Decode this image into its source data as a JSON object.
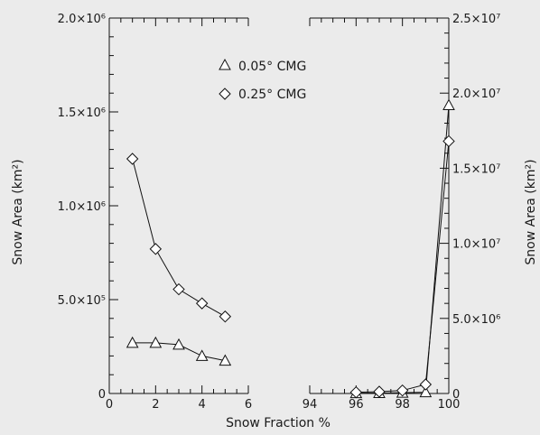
{
  "chart_data": {
    "type": "line",
    "xlabel": "Snow Fraction %",
    "left_panel": {
      "xlim": [
        0,
        6
      ],
      "ylim": [
        0,
        2000000
      ],
      "ylabel": "Snow Area (km²)",
      "x_ticks": [
        {
          "value": 0,
          "label": "0"
        },
        {
          "value": 2,
          "label": "2"
        },
        {
          "value": 4,
          "label": "4"
        },
        {
          "value": 6,
          "label": "6"
        }
      ],
      "y_ticks": [
        {
          "value": 0,
          "label": "0"
        },
        {
          "value": 500000,
          "label": "5.0×10⁵"
        },
        {
          "value": 1000000,
          "label": "1.0×10⁶"
        },
        {
          "value": 1500000,
          "label": "1.5×10⁶"
        },
        {
          "value": 2000000,
          "label": "2.0×10⁶"
        }
      ],
      "series": [
        {
          "name": "0.05° CMG",
          "marker": "triangle",
          "x": [
            1,
            2,
            3,
            4,
            5
          ],
          "y": [
            270000,
            270000,
            260000,
            200000,
            175000
          ]
        },
        {
          "name": "0.25° CMG",
          "marker": "diamond",
          "x": [
            1,
            2,
            3,
            4,
            5
          ],
          "y": [
            1250000,
            770000,
            555000,
            480000,
            410000
          ]
        }
      ]
    },
    "right_panel": {
      "xlim": [
        94,
        100
      ],
      "ylim": [
        0,
        25000000
      ],
      "ylabel": "Snow Area (km²)",
      "x_ticks": [
        {
          "value": 94,
          "label": "94"
        },
        {
          "value": 96,
          "label": "96"
        },
        {
          "value": 98,
          "label": "98"
        },
        {
          "value": 100,
          "label": "100"
        }
      ],
      "y_ticks": [
        {
          "value": 0,
          "label": "0"
        },
        {
          "value": 5000000,
          "label": "5.0×10⁶"
        },
        {
          "value": 10000000,
          "label": "1.0×10⁷"
        },
        {
          "value": 15000000,
          "label": "1.5×10⁷"
        },
        {
          "value": 20000000,
          "label": "2.0×10⁷"
        },
        {
          "value": 25000000,
          "label": "2.5×10⁷"
        }
      ],
      "series": [
        {
          "name": "0.05° CMG",
          "marker": "triangle",
          "x": [
            96,
            97,
            98,
            99,
            100
          ],
          "y": [
            20000,
            30000,
            50000,
            80000,
            19200000
          ]
        },
        {
          "name": "0.25° CMG",
          "marker": "diamond",
          "x": [
            96,
            97,
            98,
            99,
            100
          ],
          "y": [
            80000,
            120000,
            200000,
            600000,
            16800000
          ]
        }
      ]
    },
    "legend": {
      "placement": "top-left panel",
      "entries": [
        {
          "name": "0.05° CMG",
          "marker": "triangle"
        },
        {
          "name": "0.25° CMG",
          "marker": "diamond"
        }
      ]
    }
  }
}
